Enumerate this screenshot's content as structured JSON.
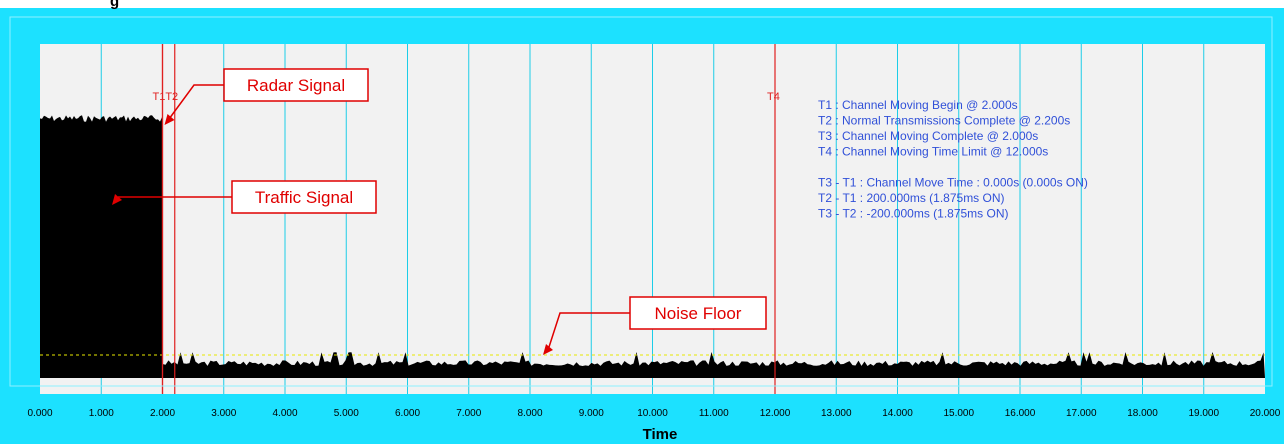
{
  "window": {
    "title_fragment": "g"
  },
  "chart_data": {
    "type": "line",
    "xlabel": "Time",
    "xlim": [
      0,
      20
    ],
    "x_ticks": [
      "0.000",
      "1.000",
      "2.000",
      "3.000",
      "4.000",
      "5.000",
      "6.000",
      "7.000",
      "8.000",
      "9.000",
      "10.000",
      "11.000",
      "12.000",
      "13.000",
      "14.000",
      "15.000",
      "16.000",
      "17.000",
      "18.000",
      "19.000",
      "20.000"
    ],
    "grid": "vertical",
    "noise_floor_level": "dashed yellow line",
    "traffic_signal": {
      "x_start": 0.0,
      "x_end": 2.0,
      "relative_level": 0.85
    },
    "noise_signal": {
      "x_start": 2.0,
      "x_end": 20.0
    },
    "cursors": [
      {
        "label": "T1",
        "x": 2.0
      },
      {
        "label": "T2",
        "x": 2.2
      },
      {
        "label": "T3",
        "x": 2.0
      },
      {
        "label": "T4",
        "x": 12.0
      }
    ],
    "cursor_labels": {
      "t1t2": "T1T2",
      "t4": "T4"
    },
    "annotations": [
      "T1 : Channel Moving Begin @ 2.000s",
      "T2 : Normal Transmissions Complete @ 2.200s",
      "T3 : Channel Moving Complete @ 2.000s",
      "T4 : Channel Moving Time Limit @ 12.000s",
      "",
      "T3 - T1 : Channel Move Time : 0.000s (0.000s ON)",
      "T2 - T1 : 200.000ms (1.875ms ON)",
      "T3 - T2 : -200.000ms (1.875ms ON)"
    ],
    "callouts": [
      {
        "label": "Radar Signal",
        "target_x": 2.0
      },
      {
        "label": "Traffic Signal",
        "target_x": 1.0
      },
      {
        "label": "Noise Floor",
        "target_x": 8.2
      }
    ]
  },
  "colors": {
    "frame": "#1ce1ff",
    "plot_bg": "#f2f2f2",
    "grid": "#1ccde8",
    "signal": "#000000",
    "cursor": "#e02020",
    "noise_line": "#e8e800",
    "annotation": "#3050d8",
    "callout": "#e00000"
  }
}
